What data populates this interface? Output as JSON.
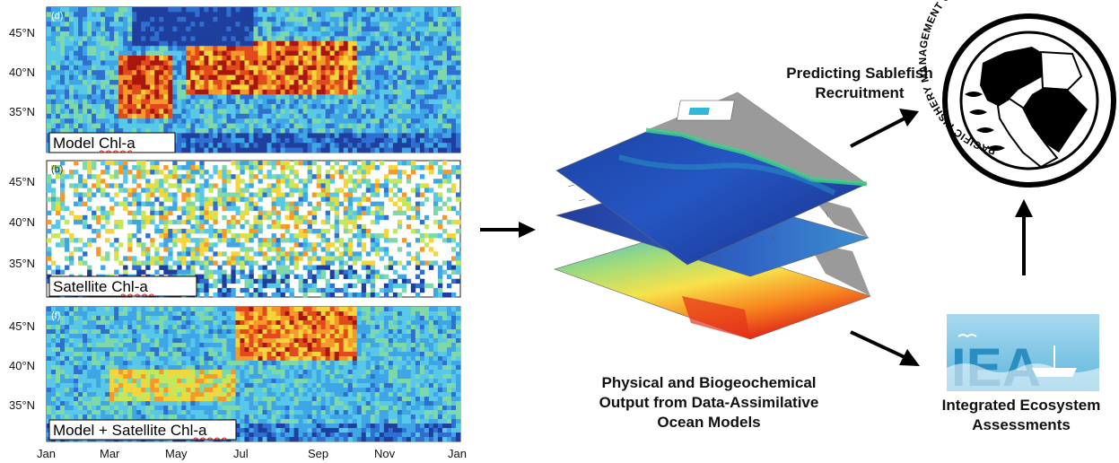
{
  "panels": [
    {
      "letter": "(d)",
      "title_prefix": "Model ",
      "title_chl": "Chl-a",
      "title_suffix": "",
      "style": "model"
    },
    {
      "letter": "(b)",
      "title_prefix": "Satellite ",
      "title_chl": "Chl-a",
      "title_suffix": "",
      "style": "satellite"
    },
    {
      "letter": "(f)",
      "title_prefix": "Model + Satellite ",
      "title_chl": "Chl-a",
      "title_suffix": "",
      "style": "combined"
    }
  ],
  "lat_ticks": [
    "45°N",
    "40°N",
    "35°N"
  ],
  "month_ticks": [
    "Jan",
    "Mar",
    "May",
    "Jul",
    "Sep",
    "Nov",
    "Jan"
  ],
  "center_caption": [
    "Physical and Biogeochemical",
    "Output from Data-Assimilative",
    "Ocean Models"
  ],
  "top_caption": [
    "Predicting Sablefish",
    "Recruitment"
  ],
  "bottom_caption": [
    "Integrated Ecosystem",
    "Assessments"
  ],
  "council_logo": {
    "ring_text": "PACIFIC FISHERY MANAGEMENT COUNCIL"
  },
  "iea_logo": {
    "letters": "IEA"
  },
  "colors": {
    "arrow": "#000000",
    "ocean_dark": "#1d2a8a",
    "land": "#9a9a9a",
    "iea_blue": "#2a8fc0"
  }
}
